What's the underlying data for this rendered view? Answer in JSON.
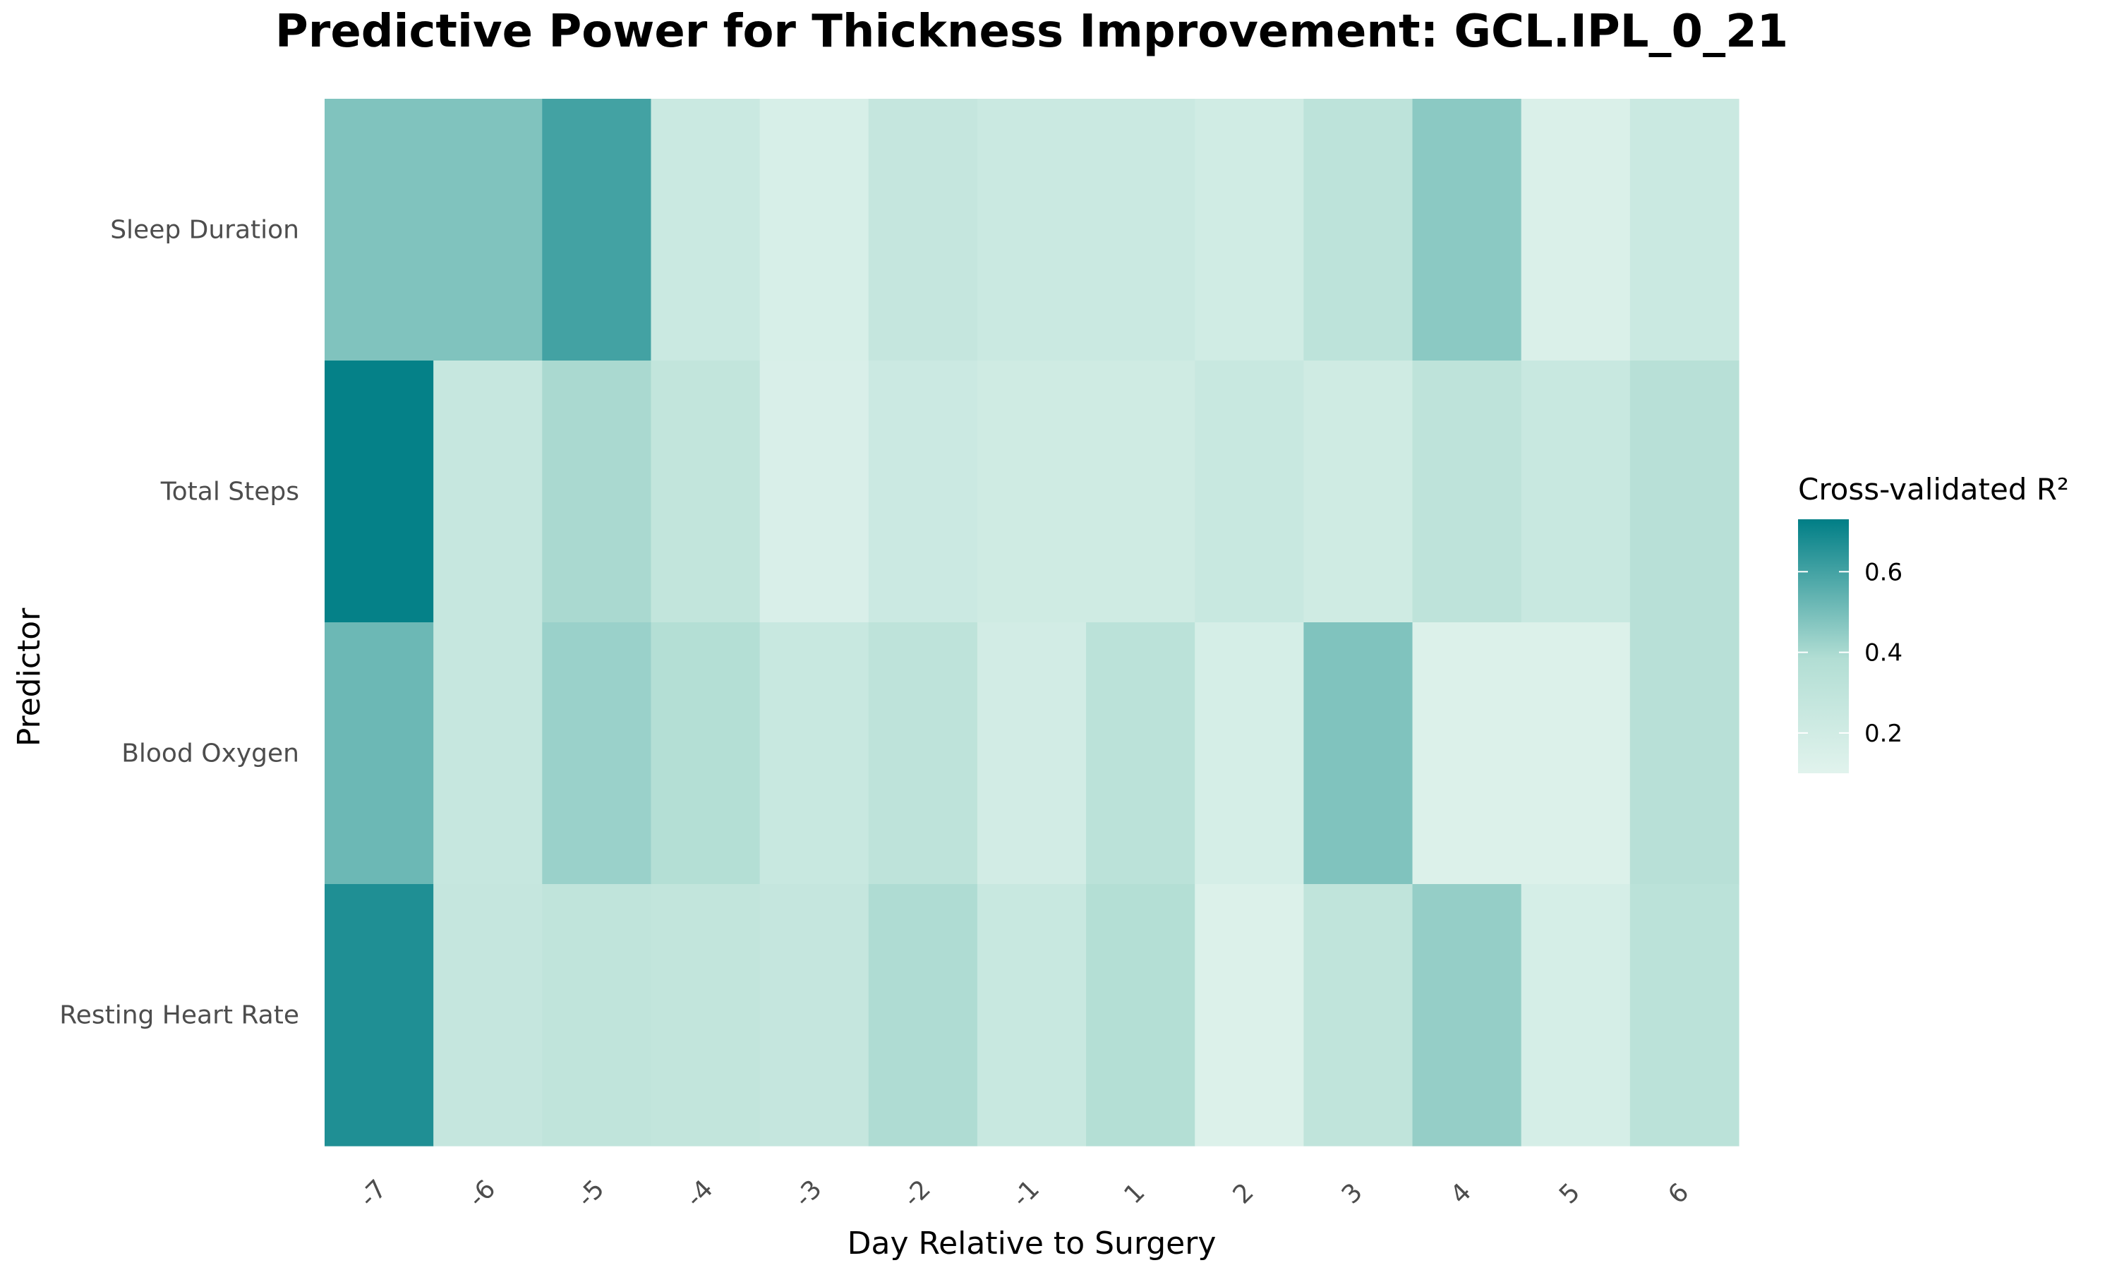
{
  "chart_data": {
    "type": "heatmap",
    "title": "Predictive Power for Thickness Improvement: GCL.IPL_0_21",
    "xlabel": "Day Relative to Surgery",
    "ylabel": "Predictor",
    "x": [
      "-7",
      "-6",
      "-5",
      "-4",
      "-3",
      "-2",
      "-1",
      "1",
      "2",
      "3",
      "4",
      "5",
      "6"
    ],
    "y": [
      "Sleep Duration",
      "Total Steps",
      "Blood Oxygen",
      "Resting Heart Rate"
    ],
    "values": [
      [
        0.48,
        0.48,
        0.6,
        0.24,
        0.16,
        0.27,
        0.24,
        0.24,
        0.2,
        0.32,
        0.46,
        0.14,
        0.24
      ],
      [
        0.72,
        0.26,
        0.4,
        0.29,
        0.15,
        0.23,
        0.21,
        0.21,
        0.25,
        0.21,
        0.31,
        0.25,
        0.35
      ],
      [
        0.52,
        0.26,
        0.43,
        0.37,
        0.25,
        0.31,
        0.19,
        0.33,
        0.17,
        0.48,
        0.13,
        0.13,
        0.35
      ],
      [
        0.67,
        0.27,
        0.3,
        0.29,
        0.27,
        0.39,
        0.25,
        0.37,
        0.13,
        0.3,
        0.44,
        0.17,
        0.33
      ]
    ],
    "legend": {
      "title": "Cross-validated R²",
      "ticks": [
        0.6,
        0.4,
        0.2
      ],
      "tick_labels": [
        "0.6",
        "0.4",
        "0.2"
      ],
      "range": [
        0.1,
        0.73
      ],
      "placement": "right"
    },
    "colors": {
      "low": "#e1f3ed",
      "mid": "#b2ded4",
      "high": "#007e86"
    }
  }
}
